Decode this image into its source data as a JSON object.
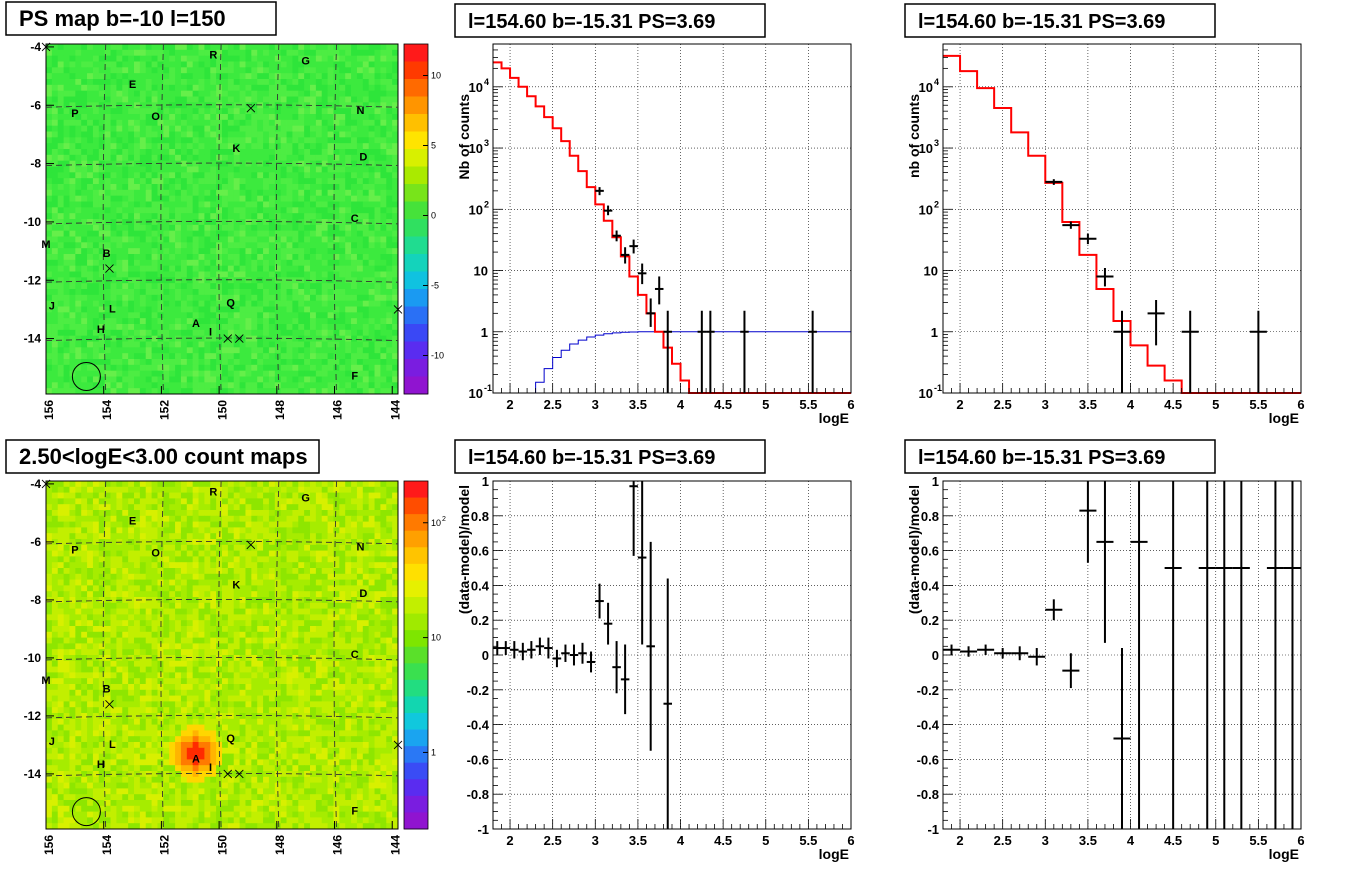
{
  "panels": [
    {
      "title": "PS map b=-10 l=150",
      "type": "heatmap",
      "xticks": [
        "156",
        "154",
        "152",
        "150",
        "148",
        "146",
        "144"
      ],
      "yticks": [
        "-4",
        "-6",
        "-8",
        "-10",
        "-12",
        "-14"
      ],
      "colorbar": {
        "scale": "linear",
        "ticks": [
          "10",
          "5",
          "0",
          "-5",
          "-10"
        ]
      },
      "labels": [
        {
          "t": "R",
          "lon": 150.2,
          "lat": -4.4
        },
        {
          "t": "G",
          "lon": 147.0,
          "lat": -4.6
        },
        {
          "t": "E",
          "lon": 153.0,
          "lat": -5.4
        },
        {
          "t": "P",
          "lon": 155.0,
          "lat": -6.4
        },
        {
          "t": "O",
          "lon": 152.2,
          "lat": -6.5
        },
        {
          "t": "N",
          "lon": 145.1,
          "lat": -6.3
        },
        {
          "t": "K",
          "lon": 149.4,
          "lat": -7.6
        },
        {
          "t": "D",
          "lon": 145.0,
          "lat": -7.9
        },
        {
          "t": "C",
          "lon": 145.3,
          "lat": -10.0
        },
        {
          "t": "M",
          "lon": 156.0,
          "lat": -10.9
        },
        {
          "t": "B",
          "lon": 153.9,
          "lat": -11.2
        },
        {
          "t": "J",
          "lon": 155.8,
          "lat": -13.0
        },
        {
          "t": "L",
          "lon": 153.7,
          "lat": -13.1
        },
        {
          "t": "Q",
          "lon": 149.6,
          "lat": -12.9
        },
        {
          "t": "A",
          "lon": 150.8,
          "lat": -13.6
        },
        {
          "t": "H",
          "lon": 154.1,
          "lat": -13.8
        },
        {
          "t": "I",
          "lon": 150.3,
          "lat": -13.9
        },
        {
          "t": "F",
          "lon": 145.3,
          "lat": -15.4
        }
      ],
      "crosses": [
        {
          "lon": 156,
          "lat": -4
        },
        {
          "lon": 148.9,
          "lat": -6.1
        },
        {
          "lon": 153.8,
          "lat": -11.6
        },
        {
          "lon": 149.7,
          "lat": -14.0
        },
        {
          "lon": 149.3,
          "lat": -14.0
        },
        {
          "lon": 143.8,
          "lat": -13.0
        }
      ],
      "circle": {
        "lon": 154.6,
        "lat": -15.3
      }
    },
    {
      "title": "l=154.60 b=-15.31 PS=3.69",
      "type": "log-histogram",
      "ylabel": "Nb of counts",
      "xlabel": "logE",
      "xlim": [
        1.8,
        6
      ],
      "ylim": [
        0.1,
        50000
      ],
      "xticks": [
        "2",
        "2.5",
        "3",
        "3.5",
        "4",
        "4.5",
        "5",
        "5.5",
        "6"
      ],
      "yticks": [
        {
          "v": 0.1,
          "t": "10"
        },
        {
          "v": 1,
          "t": "1"
        },
        {
          "v": 10,
          "t": "10"
        },
        {
          "v": 100,
          "t": "10"
        },
        {
          "v": 1000,
          "t": "10"
        },
        {
          "v": 10000,
          "t": "10"
        }
      ],
      "model_edges": [
        1.8,
        1.9,
        2.0,
        2.1,
        2.2,
        2.3,
        2.4,
        2.5,
        2.6,
        2.7,
        2.8,
        2.9,
        3.0,
        3.1,
        3.2,
        3.3,
        3.4,
        3.5,
        3.6,
        3.7,
        3.8,
        3.9,
        4.0,
        4.1,
        4.2,
        4.3,
        4.4,
        6.0
      ],
      "model": [
        25000,
        20000,
        14000,
        10000,
        7000,
        4800,
        3200,
        2100,
        1300,
        750,
        420,
        230,
        120,
        65,
        35,
        17,
        8,
        4,
        2,
        1,
        0.55,
        0.3,
        0.16,
        0.1,
        0.08,
        0.08,
        0.08
      ],
      "blue_edges": [
        1.8,
        2.2,
        2.3,
        2.4,
        2.5,
        2.6,
        2.7,
        2.8,
        2.9,
        3.0,
        3.1,
        3.2,
        3.3,
        3.4,
        3.5,
        3.6,
        6.0
      ],
      "blue": [
        0.08,
        0.1,
        0.15,
        0.25,
        0.38,
        0.5,
        0.63,
        0.73,
        0.82,
        0.88,
        0.93,
        0.96,
        0.98,
        0.99,
        1.0,
        1.0
      ],
      "data": [
        {
          "x": 3.05,
          "y": 200,
          "lo": 170,
          "hi": 230
        },
        {
          "x": 3.15,
          "y": 95,
          "lo": 80,
          "hi": 115
        },
        {
          "x": 3.25,
          "y": 37,
          "lo": 30,
          "hi": 45
        },
        {
          "x": 3.35,
          "y": 18,
          "lo": 13,
          "hi": 24
        },
        {
          "x": 3.45,
          "y": 25,
          "lo": 19,
          "hi": 32
        },
        {
          "x": 3.55,
          "y": 9,
          "lo": 6,
          "hi": 13
        },
        {
          "x": 3.65,
          "y": 2,
          "lo": 1.2,
          "hi": 3.5
        },
        {
          "x": 3.75,
          "y": 5,
          "lo": 2.8,
          "hi": 8
        },
        {
          "x": 3.85,
          "y": 1,
          "lo": 0.1,
          "hi": 2.2
        },
        {
          "x": 4.25,
          "y": 1,
          "lo": 0.1,
          "hi": 2.2
        },
        {
          "x": 4.35,
          "y": 1,
          "lo": 0.1,
          "hi": 2.2
        },
        {
          "x": 4.75,
          "y": 1,
          "lo": 0.1,
          "hi": 2.2
        },
        {
          "x": 5.55,
          "y": 1,
          "lo": 0.1,
          "hi": 2.2
        }
      ],
      "xerr": 0.05
    },
    {
      "title": "l=154.60 b=-15.31 PS=3.69",
      "type": "log-histogram",
      "ylabel": "nb of counts",
      "xlabel": "logE",
      "xlim": [
        1.8,
        6
      ],
      "ylim": [
        0.1,
        50000
      ],
      "xticks": [
        "2",
        "2.5",
        "3",
        "3.5",
        "4",
        "4.5",
        "5",
        "5.5",
        "6"
      ],
      "yticks": [
        {
          "v": 0.1,
          "t": "10"
        },
        {
          "v": 1,
          "t": "1"
        },
        {
          "v": 10,
          "t": "10"
        },
        {
          "v": 100,
          "t": "10"
        },
        {
          "v": 1000,
          "t": "10"
        },
        {
          "v": 10000,
          "t": "10"
        }
      ],
      "model_edges": [
        1.8,
        2.0,
        2.2,
        2.4,
        2.6,
        2.8,
        3.0,
        3.2,
        3.4,
        3.6,
        3.8,
        4.0,
        4.2,
        4.4,
        4.6,
        4.8,
        6.0
      ],
      "model": [
        32000,
        18000,
        9500,
        4500,
        1800,
        750,
        270,
        62,
        18,
        5,
        1.5,
        0.6,
        0.28,
        0.16,
        0.08,
        0.08
      ],
      "blue_edges": [],
      "blue": [],
      "data": [
        {
          "x": 3.1,
          "y": 280,
          "lo": 250,
          "hi": 310
        },
        {
          "x": 3.3,
          "y": 55,
          "lo": 48,
          "hi": 63
        },
        {
          "x": 3.5,
          "y": 33,
          "lo": 27,
          "hi": 40
        },
        {
          "x": 3.7,
          "y": 8,
          "lo": 5.5,
          "hi": 11
        },
        {
          "x": 3.9,
          "y": 1,
          "lo": 0.1,
          "hi": 2.2
        },
        {
          "x": 4.3,
          "y": 2,
          "lo": 0.6,
          "hi": 3.3
        },
        {
          "x": 4.7,
          "y": 1,
          "lo": 0.1,
          "hi": 2.2
        },
        {
          "x": 5.5,
          "y": 1,
          "lo": 0.1,
          "hi": 2.2
        }
      ],
      "xerr": 0.1
    },
    {
      "title": "2.50<logE<3.00 count maps",
      "type": "heatmap",
      "xticks": [
        "156",
        "154",
        "152",
        "150",
        "148",
        "146",
        "144"
      ],
      "yticks": [
        "-4",
        "-6",
        "-8",
        "-10",
        "-12",
        "-14"
      ],
      "colorbar": {
        "scale": "log",
        "ticks": [
          "10",
          "10",
          "1"
        ]
      },
      "hotspot": {
        "lon": 150.8,
        "lat": -13.3
      }
    },
    {
      "title": "l=154.60 b=-15.31 PS=3.69",
      "type": "residual",
      "ylabel": "(data-model)/model",
      "xlabel": "logE",
      "xlim": [
        1.8,
        6
      ],
      "ylim": [
        -1,
        1
      ],
      "xticks": [
        "2",
        "2.5",
        "3",
        "3.5",
        "4",
        "4.5",
        "5",
        "5.5",
        "6"
      ],
      "yticks": [
        "-1",
        "-0.8",
        "-0.6",
        "-0.4",
        "-0.2",
        "0",
        "0.2",
        "0.4",
        "0.6",
        "0.8",
        "1"
      ],
      "data": [
        {
          "x": 1.85,
          "y": 0.04,
          "e": 0.04
        },
        {
          "x": 1.95,
          "y": 0.04,
          "e": 0.04
        },
        {
          "x": 2.05,
          "y": 0.03,
          "e": 0.05
        },
        {
          "x": 2.15,
          "y": 0.02,
          "e": 0.05
        },
        {
          "x": 2.25,
          "y": 0.03,
          "e": 0.05
        },
        {
          "x": 2.35,
          "y": 0.05,
          "e": 0.05
        },
        {
          "x": 2.45,
          "y": 0.04,
          "e": 0.06
        },
        {
          "x": 2.55,
          "y": -0.02,
          "e": 0.05
        },
        {
          "x": 2.65,
          "y": 0.01,
          "e": 0.05
        },
        {
          "x": 2.75,
          "y": 0.0,
          "e": 0.06
        },
        {
          "x": 2.85,
          "y": 0.01,
          "e": 0.06
        },
        {
          "x": 2.95,
          "y": -0.04,
          "e": 0.06
        },
        {
          "x": 3.05,
          "y": 0.31,
          "e": 0.1
        },
        {
          "x": 3.15,
          "y": 0.18,
          "e": 0.12
        },
        {
          "x": 3.25,
          "y": -0.07,
          "e": 0.15
        },
        {
          "x": 3.35,
          "y": -0.14,
          "e": 0.2
        },
        {
          "x": 3.45,
          "y": 0.97,
          "e": 0.4
        },
        {
          "x": 3.55,
          "y": 0.56,
          "e": 0.5
        },
        {
          "x": 3.65,
          "y": 0.05,
          "e": 0.6
        },
        {
          "x": 3.85,
          "y": -0.28,
          "e": 0.72
        }
      ],
      "xerr": 0.05
    },
    {
      "title": "l=154.60 b=-15.31 PS=3.69",
      "type": "residual",
      "ylabel": "(data-model)/model",
      "xlabel": "logE",
      "xlim": [
        1.8,
        6
      ],
      "ylim": [
        -1,
        1
      ],
      "xticks": [
        "2",
        "2.5",
        "3",
        "3.5",
        "4",
        "4.5",
        "5",
        "5.5",
        "6"
      ],
      "yticks": [
        "-1",
        "-0.8",
        "-0.6",
        "-0.4",
        "-0.2",
        "0",
        "0.2",
        "0.4",
        "0.6",
        "0.8",
        "1"
      ],
      "data": [
        {
          "x": 1.9,
          "y": 0.03,
          "e": 0.03
        },
        {
          "x": 2.1,
          "y": 0.02,
          "e": 0.03
        },
        {
          "x": 2.3,
          "y": 0.03,
          "e": 0.03
        },
        {
          "x": 2.5,
          "y": 0.01,
          "e": 0.03
        },
        {
          "x": 2.7,
          "y": 0.01,
          "e": 0.04
        },
        {
          "x": 2.9,
          "y": -0.01,
          "e": 0.05
        },
        {
          "x": 3.1,
          "y": 0.26,
          "e": 0.06
        },
        {
          "x": 3.3,
          "y": -0.09,
          "e": 0.1
        },
        {
          "x": 3.5,
          "y": 0.83,
          "e": 0.3
        },
        {
          "x": 3.7,
          "y": 0.65,
          "e": 0.58
        },
        {
          "x": 3.9,
          "y": -0.48,
          "e": 0.52
        },
        {
          "x": 4.1,
          "y": 0.65,
          "e": 1.7
        },
        {
          "x": 4.5,
          "y": 0.5,
          "e": 1.6
        },
        {
          "x": 4.9,
          "y": 0.5,
          "e": 1.6
        },
        {
          "x": 5.1,
          "y": 0.5,
          "e": 1.6
        },
        {
          "x": 5.3,
          "y": 0.5,
          "e": 1.6
        },
        {
          "x": 5.7,
          "y": 0.5,
          "e": 1.6
        },
        {
          "x": 5.9,
          "y": 0.5,
          "e": 1.6
        }
      ],
      "xerr": 0.1
    }
  ],
  "chart_data": [
    {
      "type": "heatmap",
      "title": "PS map b=-10 l=150",
      "x_range": [
        156,
        144
      ],
      "y_range": [
        -16,
        -4
      ]
    },
    {
      "type": "line",
      "title": "l=154.60 b=-15.31 PS=3.69",
      "xlabel": "logE",
      "ylabel": "Nb of counts",
      "yscale": "log"
    },
    {
      "type": "line",
      "title": "l=154.60 b=-15.31 PS=3.69",
      "xlabel": "logE",
      "ylabel": "nb of counts",
      "yscale": "log"
    },
    {
      "type": "heatmap",
      "title": "2.50<logE<3.00 count maps",
      "x_range": [
        156,
        144
      ],
      "y_range": [
        -16,
        -4
      ]
    },
    {
      "type": "scatter",
      "title": "l=154.60 b=-15.31 PS=3.69",
      "xlabel": "logE",
      "ylabel": "(data-model)/model"
    },
    {
      "type": "scatter",
      "title": "l=154.60 b=-15.31 PS=3.69",
      "xlabel": "logE",
      "ylabel": "(data-model)/model"
    }
  ]
}
